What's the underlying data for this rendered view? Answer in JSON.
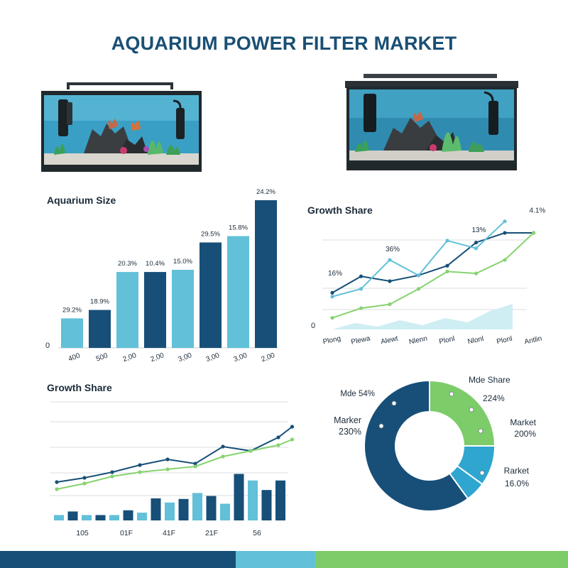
{
  "page": {
    "title": "AQUARIUM POWER FILTER MARKET"
  },
  "colors": {
    "navy": "#174f78",
    "light_blue": "#62c0d8",
    "mid_blue": "#2ea6cf",
    "green": "#7dcc6a",
    "green_line": "#86d36f",
    "grid": "#d8dde2",
    "area": "#cfeef3"
  },
  "images": {
    "left": "aquarium-illustration",
    "right": "aquarium-illustration"
  },
  "chart_data": [
    {
      "type": "bar",
      "title": "Aquarium Size",
      "categories": [
        "400",
        "500",
        "2,00",
        "2,00",
        "3,00",
        "3,00",
        "3,00",
        "2,00"
      ],
      "values": [
        29.2,
        18.9,
        20.3,
        10.4,
        15.0,
        29.5,
        15.8,
        24.2
      ],
      "value_labels": [
        "29.2%",
        "18.9%",
        "20.3%",
        "10.4%",
        "15.0%",
        "29.5%",
        "15.8%",
        "24.2%"
      ],
      "bar_heights_rel": [
        0.2,
        0.257,
        0.514,
        0.514,
        0.529,
        0.714,
        0.757,
        1.0
      ],
      "bar_colors": [
        "#62c0d8",
        "#174f78",
        "#62c0d8",
        "#174f78",
        "#62c0d8",
        "#174f78",
        "#62c0d8",
        "#174f78"
      ],
      "y_tick": "0"
    },
    {
      "type": "line",
      "title": "Growth Share",
      "categories": [
        "Plong",
        "Plewa",
        "Alewt",
        "Nlenn",
        "Plonl",
        "Nlonl",
        "Plonl",
        "Antlin"
      ],
      "y_tick": "0",
      "annotations": [
        {
          "text": "16%",
          "x": 0,
          "y": 0.47
        },
        {
          "text": "36%",
          "x": 2,
          "y": 0.72
        },
        {
          "text": "13%",
          "x": 5,
          "y": 0.92
        },
        {
          "text": "4.1%",
          "x": 7,
          "y": 1.12
        }
      ],
      "series": [
        {
          "name": "",
          "color": "#174f78",
          "values": [
            0.38,
            0.55,
            0.5,
            0.56,
            0.66,
            0.9,
            1.0,
            1.0
          ]
        },
        {
          "name": "",
          "color": "#62c0d8",
          "values": [
            0.34,
            0.42,
            0.72,
            0.56,
            0.92,
            0.84,
            1.12,
            null
          ]
        },
        {
          "name": "",
          "color": "#86d36f",
          "values": [
            0.12,
            0.22,
            0.26,
            0.42,
            0.6,
            0.58,
            0.72,
            1.0
          ]
        }
      ],
      "area": [
        0.0,
        0.09,
        0.04,
        0.13,
        0.06,
        0.16,
        0.1,
        0.26,
        0.36
      ]
    },
    {
      "type": "combo",
      "title": "Growth Share",
      "x_tick_labels": [
        "105",
        "01F",
        "41F",
        "21F",
        "56"
      ],
      "bars": [
        0.09,
        0.15,
        0.09,
        0.09,
        0.09,
        0.17,
        0.13,
        0.37,
        0.3,
        0.36,
        0.46,
        0.41,
        0.28,
        0.78,
        0.67,
        0.51,
        0.67
      ],
      "bar_colors": [
        "#62c0d8",
        "#174f78",
        "#62c0d8",
        "#174f78",
        "#62c0d8",
        "#174f78",
        "#62c0d8",
        "#174f78",
        "#62c0d8",
        "#174f78",
        "#62c0d8",
        "#174f78",
        "#62c0d8",
        "#174f78",
        "#62c0d8",
        "#174f78",
        "#174f78"
      ],
      "series": [
        {
          "name": "",
          "color": "#174f78",
          "values": [
            0.55,
            0.64,
            0.77,
            0.87,
            0.95,
            0.97,
            1.0,
            0.98,
            1.0,
            1.0,
            1.0,
            1.0,
            1.0,
            1.0,
            1.0,
            1.0,
            1.0
          ]
        },
        {
          "name": "",
          "color": "#86d36f",
          "values": [
            0.45,
            0.58,
            0.69,
            0.75,
            0.82,
            0.9,
            0.9,
            0.98,
            1.0,
            1.0,
            1.0,
            1.0,
            1.0,
            1.0,
            1.0,
            1.0,
            1.0
          ]
        }
      ],
      "line_points": {
        "navy": [
          [
            0,
            0.52
          ],
          [
            2,
            0.58
          ],
          [
            4,
            0.66
          ],
          [
            6,
            0.76
          ],
          [
            8,
            0.84
          ],
          [
            10,
            0.78
          ],
          [
            12,
            1.02
          ],
          [
            14,
            0.96
          ],
          [
            16,
            1.15
          ],
          [
            17,
            1.3
          ]
        ],
        "green": [
          [
            0,
            0.42
          ],
          [
            2,
            0.5
          ],
          [
            4,
            0.6
          ],
          [
            6,
            0.66
          ],
          [
            8,
            0.7
          ],
          [
            10,
            0.74
          ],
          [
            12,
            0.88
          ],
          [
            14,
            0.96
          ],
          [
            16,
            1.04
          ],
          [
            17,
            1.12
          ]
        ]
      }
    },
    {
      "type": "pie",
      "donut": true,
      "slices": [
        {
          "label": "Mde Share",
          "value": 25,
          "color": "#7dcc6a"
        },
        {
          "label": "Market",
          "value": 10,
          "color": "#2ea6cf"
        },
        {
          "label": "Rarket",
          "value": 5,
          "color": "#2ea6cf"
        },
        {
          "label": "Marker",
          "value": 60,
          "color": "#174f78"
        }
      ],
      "labels": [
        {
          "text": "Mde Share"
        },
        {
          "text": "224%"
        },
        {
          "text": "Market"
        },
        {
          "text": "200%"
        },
        {
          "text": "Rarket"
        },
        {
          "text": "16.0%"
        },
        {
          "text": "Mde 54%"
        },
        {
          "text": "Marker"
        },
        {
          "text": "230%"
        }
      ]
    }
  ]
}
